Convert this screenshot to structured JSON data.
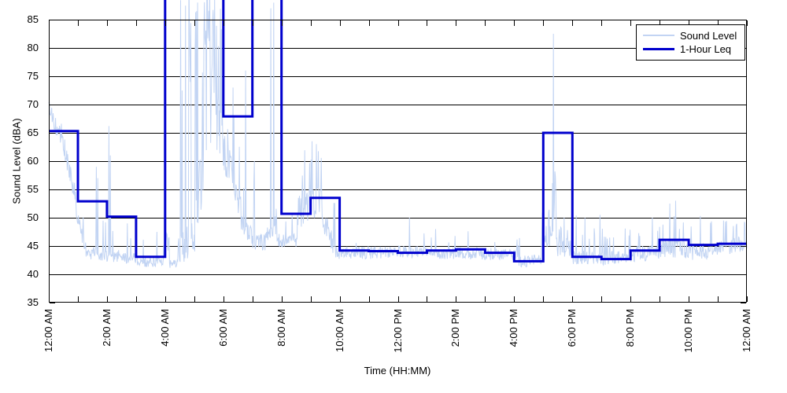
{
  "window": {
    "background": "#ffffff"
  },
  "axes": {
    "x": {
      "title": "Time (HH:MM)",
      "range_hours": [
        0,
        24
      ],
      "minor_tick_every_hours": 1,
      "tick_hours": [
        0,
        2,
        4,
        6,
        8,
        10,
        12,
        14,
        16,
        18,
        20,
        22,
        24
      ],
      "tick_labels": [
        "12:00 AM",
        "2:00 AM",
        "4:00 AM",
        "6:00 AM",
        "8:00 AM",
        "10:00 AM",
        "12:00 PM",
        "2:00 PM",
        "4:00 PM",
        "6:00 PM",
        "8:00 PM",
        "10:00 PM",
        "12:00 AM"
      ]
    },
    "y": {
      "title": "Sound Level (dBA)",
      "range": [
        35,
        85
      ],
      "ticks": [
        35,
        40,
        45,
        50,
        55,
        60,
        65,
        70,
        75,
        80,
        85
      ],
      "gridlines": "horizontal solid black"
    }
  },
  "legend": {
    "position": "top-right inside plot",
    "items": [
      {
        "label": "Sound Level",
        "color": "#c2d4f3",
        "line_width": 1.5
      },
      {
        "label": "1-Hour Leq",
        "color": "#0000cd",
        "line_width": 3
      }
    ]
  },
  "chart_data": {
    "type": "line",
    "title": "",
    "xlabel": "Time (HH:MM)",
    "ylabel": "Sound Level (dBA)",
    "ylim": [
      35,
      85
    ],
    "xlim_hours": [
      0,
      24
    ],
    "grid": "horizontal only",
    "series": [
      {
        "name": "Sound Level",
        "style": "noisy 1-minute sound level samples, thin light blue line",
        "color": "#c2d4f3",
        "approximation_format": "envelope rows = [start_hour, end_hour, level_start_dBA, level_end_dBA, jitter_dBA, spike_probability, spike_min_dBA, spike_max_dBA]; values above 85 run off the top of the plot",
        "envelope": [
          [
            0.0,
            0.2,
            70,
            66.5,
            1.3,
            0,
            0,
            0
          ],
          [
            0.2,
            0.55,
            66.5,
            62.5,
            1.8,
            0.05,
            66,
            68.5
          ],
          [
            0.55,
            0.95,
            62,
            52.5,
            2.2,
            0.06,
            60,
            64
          ],
          [
            0.95,
            1.3,
            50,
            44.5,
            1.8,
            0.08,
            50,
            55
          ],
          [
            1.3,
            2.0,
            43.8,
            43.3,
            1.1,
            0.06,
            46.5,
            52
          ],
          [
            2.0,
            2.45,
            43.2,
            43.2,
            1.1,
            0.05,
            46,
            49
          ],
          [
            2.45,
            3.05,
            42.8,
            42.8,
            1.0,
            0.05,
            46,
            50
          ],
          [
            3.05,
            3.95,
            42.2,
            42.2,
            0.9,
            0.04,
            44.5,
            47.5
          ],
          [
            3.95,
            4.15,
            44.5,
            45.5,
            1.5,
            0.12,
            46,
            48
          ],
          [
            4.15,
            4.45,
            41.8,
            41.8,
            0.7,
            0.03,
            43.5,
            45.5
          ],
          [
            4.45,
            5.05,
            44,
            47,
            3.0,
            0.2,
            70,
            93
          ],
          [
            5.05,
            5.35,
            51,
            58,
            6.0,
            0.35,
            75,
            93
          ],
          [
            5.35,
            5.72,
            68,
            73,
            8.0,
            0.55,
            80,
            93
          ],
          [
            5.72,
            5.95,
            67,
            62,
            6.0,
            0.3,
            70,
            87
          ],
          [
            5.95,
            6.35,
            62,
            57,
            3.5,
            0.1,
            64,
            70
          ],
          [
            6.35,
            6.65,
            56,
            50,
            3.0,
            0.08,
            60,
            70
          ],
          [
            6.65,
            7.0,
            49,
            46.5,
            1.8,
            0.05,
            52,
            56
          ],
          [
            7.0,
            7.45,
            46,
            45.5,
            1.5,
            0.06,
            50,
            57
          ],
          [
            7.45,
            7.8,
            47,
            47,
            1.8,
            0.08,
            50,
            53
          ],
          [
            7.8,
            8.55,
            46,
            46,
            1.3,
            0.05,
            49,
            53
          ],
          [
            8.55,
            9.4,
            51,
            53,
            3.0,
            0.2,
            56,
            62.5
          ],
          [
            9.4,
            9.85,
            50,
            44.5,
            2.2,
            0.08,
            50,
            54
          ],
          [
            9.85,
            12.0,
            43.8,
            43.8,
            1.1,
            0.035,
            45.5,
            48.5
          ],
          [
            12.0,
            16.1,
            44,
            43.5,
            1.1,
            0.035,
            45.5,
            48.5
          ],
          [
            16.1,
            16.95,
            42.2,
            42.5,
            1.0,
            0.03,
            44.5,
            46.5
          ],
          [
            16.95,
            17.28,
            46,
            47,
            2.0,
            0.12,
            48.5,
            51.5
          ],
          [
            17.28,
            17.45,
            50,
            53,
            4.0,
            0.3,
            55,
            60
          ],
          [
            17.45,
            18.0,
            45,
            44.5,
            1.8,
            0.1,
            47,
            51
          ],
          [
            18.0,
            19.0,
            43,
            43,
            1.2,
            0.06,
            46,
            50.5
          ],
          [
            19.0,
            20.0,
            42.8,
            43,
            1.2,
            0.05,
            45.5,
            48.5
          ],
          [
            20.0,
            21.0,
            43.5,
            44,
            1.4,
            0.06,
            46.5,
            50
          ],
          [
            21.0,
            22.0,
            44.5,
            44.5,
            1.7,
            0.08,
            48,
            53
          ],
          [
            22.0,
            23.0,
            44,
            44.2,
            1.5,
            0.06,
            47,
            51.5
          ],
          [
            23.0,
            24.0,
            44.5,
            45.5,
            1.4,
            0.06,
            47,
            49.5
          ]
        ],
        "spike_events": [
          [
            0.02,
            70.5
          ],
          [
            1.63,
            59
          ],
          [
            1.68,
            57
          ],
          [
            2.07,
            66.2
          ],
          [
            2.12,
            61
          ],
          [
            3.72,
            47.5
          ],
          [
            6.33,
            73
          ],
          [
            6.77,
            76
          ],
          [
            7.07,
            60
          ],
          [
            7.63,
            87
          ],
          [
            7.73,
            88
          ],
          [
            9.05,
            63.5
          ],
          [
            9.2,
            63
          ],
          [
            12.4,
            50
          ],
          [
            13.3,
            48
          ],
          [
            17.35,
            82.5
          ],
          [
            18.95,
            50.5
          ],
          [
            20.75,
            50
          ],
          [
            21.35,
            52.5
          ],
          [
            21.55,
            53
          ],
          [
            22.4,
            50.3
          ],
          [
            23.2,
            49.5
          ]
        ]
      },
      {
        "name": "1-Hour Leq",
        "style": "hourly step line, thick dark blue",
        "color": "#0000cd",
        "hours": [
          0,
          1,
          2,
          3,
          4,
          5,
          6,
          7,
          8,
          9,
          10,
          11,
          12,
          13,
          14,
          15,
          16,
          17,
          18,
          19,
          20,
          21,
          22,
          23
        ],
        "values": [
          65.3,
          52.9,
          50.2,
          43.1,
          null,
          null,
          67.9,
          null,
          50.7,
          53.5,
          44.2,
          44.1,
          43.8,
          44.2,
          44.4,
          43.8,
          42.3,
          65.0,
          43.1,
          42.7,
          44.2,
          46.1,
          45.2,
          45.4
        ],
        "off_scale_note": "null values for the 4:00 AM, 5:00 AM and 7:00 AM hours exceed the 85 dBA axis maximum and are drawn running off the top edge of the plot"
      }
    ]
  }
}
